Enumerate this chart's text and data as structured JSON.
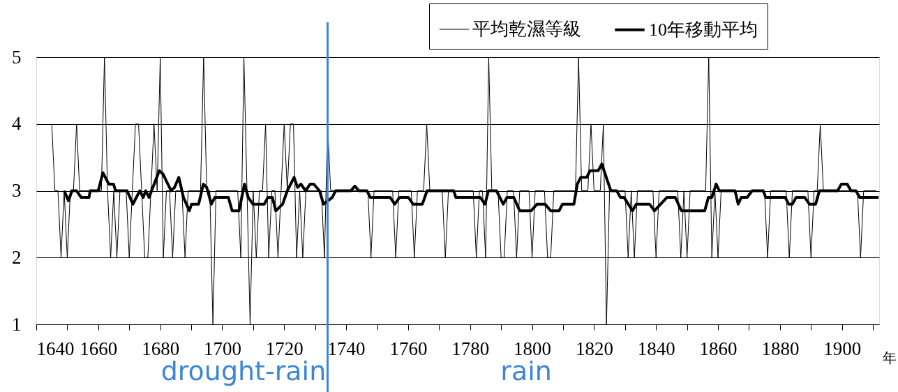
{
  "chart_data": {
    "type": "line",
    "xlabel": "年",
    "xlim": [
      1640,
      1912
    ],
    "ylim": [
      1,
      5
    ],
    "yticks": [
      1,
      2,
      3,
      4,
      5
    ],
    "xticks": [
      1640,
      {
        "value": 1650,
        "label": null
      },
      1660,
      {
        "value": 1670,
        "label": null
      },
      1680,
      {
        "value": 1690,
        "label": null
      },
      1700,
      {
        "value": 1710,
        "label": null
      },
      1720,
      {
        "value": 1730,
        "label": null
      },
      1740,
      {
        "value": 1750,
        "label": null
      },
      1760,
      {
        "value": 1770,
        "label": null
      },
      1780,
      {
        "value": 1790,
        "label": null
      },
      1800,
      {
        "value": 1810,
        "label": null
      },
      1820,
      {
        "value": 1830,
        "label": null
      },
      1840,
      {
        "value": 1850,
        "label": null
      },
      1860,
      {
        "value": 1870,
        "label": null
      },
      1880,
      {
        "value": 1890,
        "label": null
      },
      1900,
      {
        "value": 1910,
        "label": null
      }
    ],
    "grid": "y",
    "legend": "top right",
    "series": [
      {
        "name": "平均乾濕等級",
        "color": "#000000",
        "x": [
          1645,
          1646,
          1647,
          1648,
          1649,
          1650,
          1651,
          1652,
          1653,
          1654,
          1661,
          1662,
          1663,
          1664,
          1665,
          1666,
          1667,
          1669,
          1670,
          1671,
          1672,
          1673,
          1674,
          1675,
          1676,
          1677,
          1678,
          1679,
          1680,
          1681,
          1682,
          1683,
          1684,
          1685,
          1687,
          1688,
          1689,
          1693,
          1694,
          1695,
          1696,
          1697,
          1698,
          1705,
          1706,
          1707,
          1708,
          1709,
          1710,
          1711,
          1712,
          1713,
          1714,
          1715,
          1716,
          1717,
          1718,
          1719,
          1720,
          1721,
          1722,
          1723,
          1724,
          1725,
          1726,
          1727,
          1732,
          1733,
          1734,
          1735,
          1747,
          1748,
          1749,
          1755,
          1756,
          1757,
          1761,
          1762,
          1763,
          1765,
          1766,
          1767,
          1771,
          1772,
          1773,
          1781,
          1782,
          1783,
          1784,
          1785,
          1786,
          1787,
          1789,
          1790,
          1791,
          1792,
          1794,
          1795,
          1796,
          1799,
          1800,
          1801,
          1804,
          1805,
          1806,
          1807,
          1814,
          1815,
          1816,
          1818,
          1819,
          1820,
          1822,
          1823,
          1824,
          1825,
          1830,
          1831,
          1832,
          1833,
          1834,
          1839,
          1840,
          1841,
          1847,
          1848,
          1849,
          1850,
          1851,
          1856,
          1857,
          1858,
          1859,
          1860,
          1861,
          1875,
          1876,
          1877,
          1882,
          1883,
          1884,
          1889,
          1890,
          1891,
          1892,
          1893,
          1894,
          1905,
          1906,
          1907,
          1911
        ],
        "values": [
          4,
          3,
          3,
          2,
          3,
          2,
          3,
          3,
          4,
          3,
          3,
          5,
          3,
          2,
          3,
          2,
          3,
          3,
          2,
          3,
          4,
          4,
          3,
          2,
          2,
          3,
          4,
          3,
          5,
          2,
          3,
          3,
          2,
          3,
          3,
          2,
          3,
          3,
          5,
          3,
          3,
          1,
          3,
          3,
          2,
          5,
          3,
          1,
          3,
          2,
          3,
          3,
          4,
          2,
          3,
          3,
          2,
          3,
          4,
          3,
          4,
          4,
          2,
          3,
          2,
          3,
          3,
          2,
          4,
          3,
          3,
          2,
          3,
          3,
          2,
          3,
          3,
          2,
          3,
          3,
          4,
          3,
          3,
          2,
          3,
          3,
          2,
          3,
          3,
          2,
          5,
          3,
          3,
          2,
          2,
          3,
          3,
          2,
          3,
          3,
          2,
          3,
          3,
          2,
          2,
          3,
          3,
          5,
          3,
          3,
          4,
          3,
          3,
          4,
          1,
          3,
          3,
          2,
          3,
          2,
          3,
          3,
          2,
          3,
          3,
          2,
          3,
          2,
          3,
          3,
          5,
          2,
          3,
          2,
          3,
          3,
          2,
          3,
          3,
          2,
          3,
          3,
          2,
          3,
          3,
          4,
          3,
          3,
          2,
          3,
          3
        ]
      },
      {
        "name": "10年移動平均",
        "color": "#000000",
        "x": [
          1649,
          1650.4,
          1651.5,
          1653,
          1654.5,
          1657,
          1657.4,
          1660,
          1661.5,
          1663.4,
          1664.9,
          1665.6,
          1669.3,
          1671.2,
          1673.4,
          1674.5,
          1675.3,
          1676.4,
          1677.2,
          1679.7,
          1680.9,
          1683.5,
          1684.6,
          1686,
          1687.5,
          1689.4,
          1690.1,
          1692.4,
          1693.9,
          1695,
          1696.5,
          1697.6,
          1702,
          1703.2,
          1705.4,
          1707.2,
          1708.4,
          1709.9,
          1713.6,
          1714.7,
          1716.2,
          1717.3,
          1719.5,
          1721,
          1723.2,
          1724.3,
          1725.4,
          1726.9,
          1728.4,
          1729.5,
          1731.4,
          1732.7,
          1735.5,
          1736.6,
          1741.5,
          1742.8,
          1744.1,
          1746.7,
          1747.8,
          1754.2,
          1755.7,
          1757.2,
          1760.1,
          1761.6,
          1764.6,
          1766.1,
          1774.7,
          1775.4,
          1783.3,
          1784.8,
          1785.9,
          1788.5,
          1790.7,
          1791.9,
          1794.1,
          1796,
          1799.7,
          1801.6,
          1804.2,
          1806,
          1808.7,
          1809.8,
          1813.5,
          1814.6,
          1815.7,
          1817.6,
          1818.7,
          1821.3,
          1822.5,
          1825.4,
          1827.3,
          1828.5,
          1829.7,
          1832.4,
          1833.6,
          1837.9,
          1839.5,
          1841.5,
          1843.5,
          1846.2,
          1848.2,
          1855.7,
          1856.9,
          1858,
          1859.4,
          1860.4,
          1865.5,
          1866.5,
          1867.5,
          1869.4,
          1871,
          1874.6,
          1875.4,
          1881.7,
          1882.8,
          1884,
          1885.2,
          1888,
          1889.5,
          1891.5,
          1892.7,
          1898.6,
          1899.8,
          1901.7,
          1902.9,
          1904.5,
          1905.7,
          1911.8
        ],
        "values": [
          3,
          2.85,
          3,
          3,
          2.9,
          2.9,
          3,
          3,
          3.27,
          3.1,
          3.1,
          3,
          3,
          2.8,
          3,
          2.9,
          3,
          2.9,
          3,
          3.3,
          3.25,
          3,
          3.05,
          3.2,
          2.9,
          2.7,
          2.8,
          2.8,
          3.1,
          3.05,
          2.8,
          2.9,
          2.9,
          2.7,
          2.7,
          3.1,
          2.9,
          2.8,
          2.8,
          2.9,
          2.9,
          2.7,
          2.8,
          3,
          3.2,
          3.05,
          3.1,
          3,
          3.1,
          3.1,
          3,
          2.8,
          2.9,
          3,
          3,
          3.07,
          3,
          3,
          2.9,
          2.9,
          2.8,
          2.9,
          2.9,
          2.8,
          2.8,
          3,
          3,
          2.9,
          2.9,
          2.8,
          3,
          3,
          2.8,
          2.9,
          2.9,
          2.7,
          2.7,
          2.8,
          2.8,
          2.7,
          2.7,
          2.8,
          2.8,
          3.1,
          3.2,
          3.2,
          3.3,
          3.3,
          3.4,
          3,
          3,
          2.9,
          2.9,
          2.7,
          2.8,
          2.8,
          2.7,
          2.8,
          2.9,
          2.9,
          2.7,
          2.7,
          2.9,
          2.9,
          3.1,
          3,
          3,
          2.8,
          2.9,
          2.9,
          3,
          3,
          2.9,
          2.9,
          2.8,
          2.8,
          2.9,
          2.9,
          2.8,
          2.8,
          3,
          3,
          3.1,
          3.1,
          3,
          3,
          2.9,
          2.9
        ]
      }
    ],
    "ref_lines": [
      {
        "axis": "x",
        "value": 1734,
        "color": "#3d85d6"
      }
    ],
    "annotations": [
      "drought-rain",
      "rain"
    ]
  }
}
